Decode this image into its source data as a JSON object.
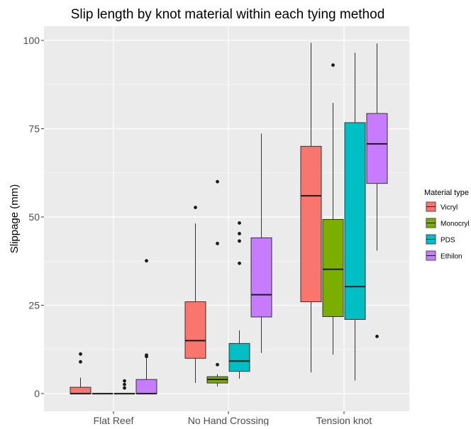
{
  "chart_data": {
    "type": "box",
    "title": "Slip length by knot material within each tying method",
    "xlabel": "",
    "ylabel": "Slippage (mm)",
    "ylim": [
      -5,
      104
    ],
    "yticks": [
      0,
      25,
      50,
      75,
      100
    ],
    "categories": [
      "Flat Reef",
      "No Hand Crossing",
      "Tension knot"
    ],
    "grid": true,
    "legend": {
      "title": "Material type",
      "position": "right",
      "entries": [
        "Vicryl",
        "Monocryl",
        "PDS",
        "Ethilon"
      ]
    },
    "colors": {
      "Vicryl": "#F8766D",
      "Monocryl": "#7CAE00",
      "PDS": "#00BFC4",
      "Ethilon": "#C77CFF",
      "panel": "#EBEBEB",
      "grid": "#FFFFFF",
      "text": "#000000",
      "axis_text": "#4D4D4D"
    },
    "series": [
      {
        "name": "Vicryl",
        "boxes": [
          {
            "category": "Flat Reef",
            "min": 0,
            "q1": 0,
            "median": 0,
            "q3": 1.8,
            "max": 4.5,
            "outliers": [
              9,
              11.2
            ]
          },
          {
            "category": "No Hand Crossing",
            "min": 3,
            "q1": 10,
            "median": 15,
            "q3": 26,
            "max": 48.2,
            "outliers": [
              52.7
            ]
          },
          {
            "category": "Tension knot",
            "min": 6,
            "q1": 26,
            "median": 56,
            "q3": 70,
            "max": 99.3,
            "outliers": []
          }
        ]
      },
      {
        "name": "Monocryl",
        "boxes": [
          {
            "category": "Flat Reef",
            "min": 0,
            "q1": 0,
            "median": 0,
            "q3": 0,
            "max": 0,
            "outliers": []
          },
          {
            "category": "No Hand Crossing",
            "min": 2,
            "q1": 3,
            "median": 4,
            "q3": 4.8,
            "max": 5.5,
            "outliers": [
              8.2,
              42.5,
              60
            ]
          },
          {
            "category": "Tension knot",
            "min": 11,
            "q1": 21.8,
            "median": 35.2,
            "q3": 49.3,
            "max": 82.3,
            "outliers": [
              93
            ]
          }
        ]
      },
      {
        "name": "PDS",
        "boxes": [
          {
            "category": "Flat Reef",
            "min": 0,
            "q1": 0,
            "median": 0,
            "q3": 0,
            "max": 0,
            "outliers": [
              1.6,
              2.6,
              3.6
            ]
          },
          {
            "category": "No Hand Crossing",
            "min": 4.2,
            "q1": 6.3,
            "median": 9.2,
            "q3": 14.2,
            "max": 17.9,
            "outliers": [
              36.9,
              43.2,
              45.3,
              48.3
            ]
          },
          {
            "category": "Tension knot",
            "min": 3.7,
            "q1": 21,
            "median": 30.3,
            "q3": 76.7,
            "max": 96.5,
            "outliers": []
          }
        ]
      },
      {
        "name": "Ethilon",
        "boxes": [
          {
            "category": "Flat Reef",
            "min": 0,
            "q1": 0,
            "median": 0,
            "q3": 4,
            "max": 10,
            "outliers": [
              10.5,
              10.9,
              37.6
            ]
          },
          {
            "category": "No Hand Crossing",
            "min": 11.5,
            "q1": 21.7,
            "median": 28,
            "q3": 44.1,
            "max": 73.6,
            "outliers": []
          },
          {
            "category": "Tension knot",
            "min": 40.5,
            "q1": 59.5,
            "median": 70.7,
            "q3": 79.3,
            "max": 99.1,
            "outliers": [
              16.2
            ]
          }
        ]
      }
    ]
  }
}
